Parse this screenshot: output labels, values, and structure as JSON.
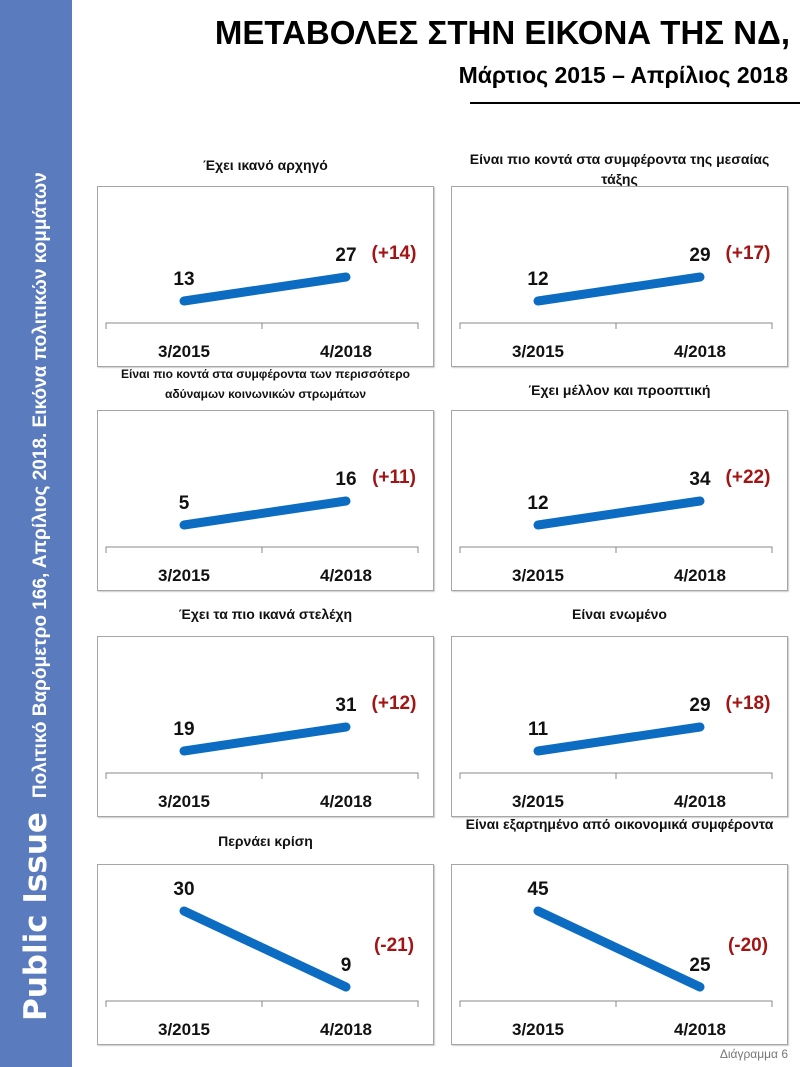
{
  "sidebar": {
    "brand": "Public Issue",
    "description": "Πολιτικό Βαρόμετρο 166, Απρίλιος 2018. Εικόνα πολιτικών κομμάτων"
  },
  "header": {
    "title": "ΜΕΤΑΒΟΛΕΣ ΣΤΗΝ ΕΙΚΟΝΑ ΤΗΣ ΝΔ,",
    "subtitle": "Μάρτιος 2015 – Απρίλιος 2018"
  },
  "footer": "Διάγραμμα 6",
  "colors": {
    "line": "#0b6cc2",
    "change": "#a31515",
    "sidebar": "#5b7bbf"
  },
  "chart_data": [
    {
      "type": "line",
      "title": "Έχει ικανό αρχηγό",
      "categories": [
        "3/2015",
        "4/2018"
      ],
      "values": [
        13,
        27
      ],
      "change": "(+14)"
    },
    {
      "type": "line",
      "title": "Είναι πιο κοντά στα συμφέροντα της μεσαίας τάξης",
      "categories": [
        "3/2015",
        "4/2018"
      ],
      "values": [
        12,
        29
      ],
      "change": "(+17)"
    },
    {
      "type": "line",
      "title": "Είναι πιο κοντά στα συμφέροντα των περισσότερο αδύναμων κοινωνικών στρωμάτων",
      "categories": [
        "3/2015",
        "4/2018"
      ],
      "values": [
        5,
        16
      ],
      "change": "(+11)"
    },
    {
      "type": "line",
      "title": "Έχει μέλλον και προοπτική",
      "categories": [
        "3/2015",
        "4/2018"
      ],
      "values": [
        12,
        34
      ],
      "change": "(+22)"
    },
    {
      "type": "line",
      "title": "Έχει τα πιο ικανά στελέχη",
      "categories": [
        "3/2015",
        "4/2018"
      ],
      "values": [
        19,
        31
      ],
      "change": "(+12)"
    },
    {
      "type": "line",
      "title": "Είναι ενωμένο",
      "categories": [
        "3/2015",
        "4/2018"
      ],
      "values": [
        11,
        29
      ],
      "change": "(+18)"
    },
    {
      "type": "line",
      "title": "Περνάει κρίση",
      "categories": [
        "3/2015",
        "4/2018"
      ],
      "values": [
        30,
        9
      ],
      "change": "(-21)"
    },
    {
      "type": "line",
      "title": "Είναι εξαρτημένο από οικονομικά συμφέροντα",
      "categories": [
        "3/2015",
        "4/2018"
      ],
      "values": [
        45,
        25
      ],
      "change": "(-20)"
    }
  ]
}
